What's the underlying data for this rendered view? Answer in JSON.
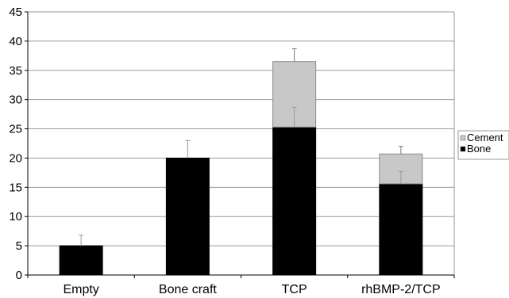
{
  "chart_data": {
    "type": "bar",
    "stacked": true,
    "categories": [
      "Empty",
      "Bone craft",
      "TCP",
      "rhBMP-2/TCP"
    ],
    "series": [
      {
        "name": "Bone",
        "values": [
          5,
          20,
          25.3,
          15.6
        ],
        "errors": [
          1.8,
          3.0,
          3.4,
          2.1
        ],
        "color": "#000000"
      },
      {
        "name": "Cement",
        "values": [
          0,
          0,
          11.2,
          5.1
        ],
        "errors": [
          0,
          0,
          2.2,
          1.3
        ],
        "color": "#c8c8c8"
      }
    ],
    "ylim": [
      0,
      45
    ],
    "yticks": [
      0,
      5,
      10,
      15,
      20,
      25,
      30,
      35,
      40,
      45
    ],
    "grid": true,
    "legend": "right",
    "title": "",
    "xlabel": "",
    "ylabel": ""
  }
}
